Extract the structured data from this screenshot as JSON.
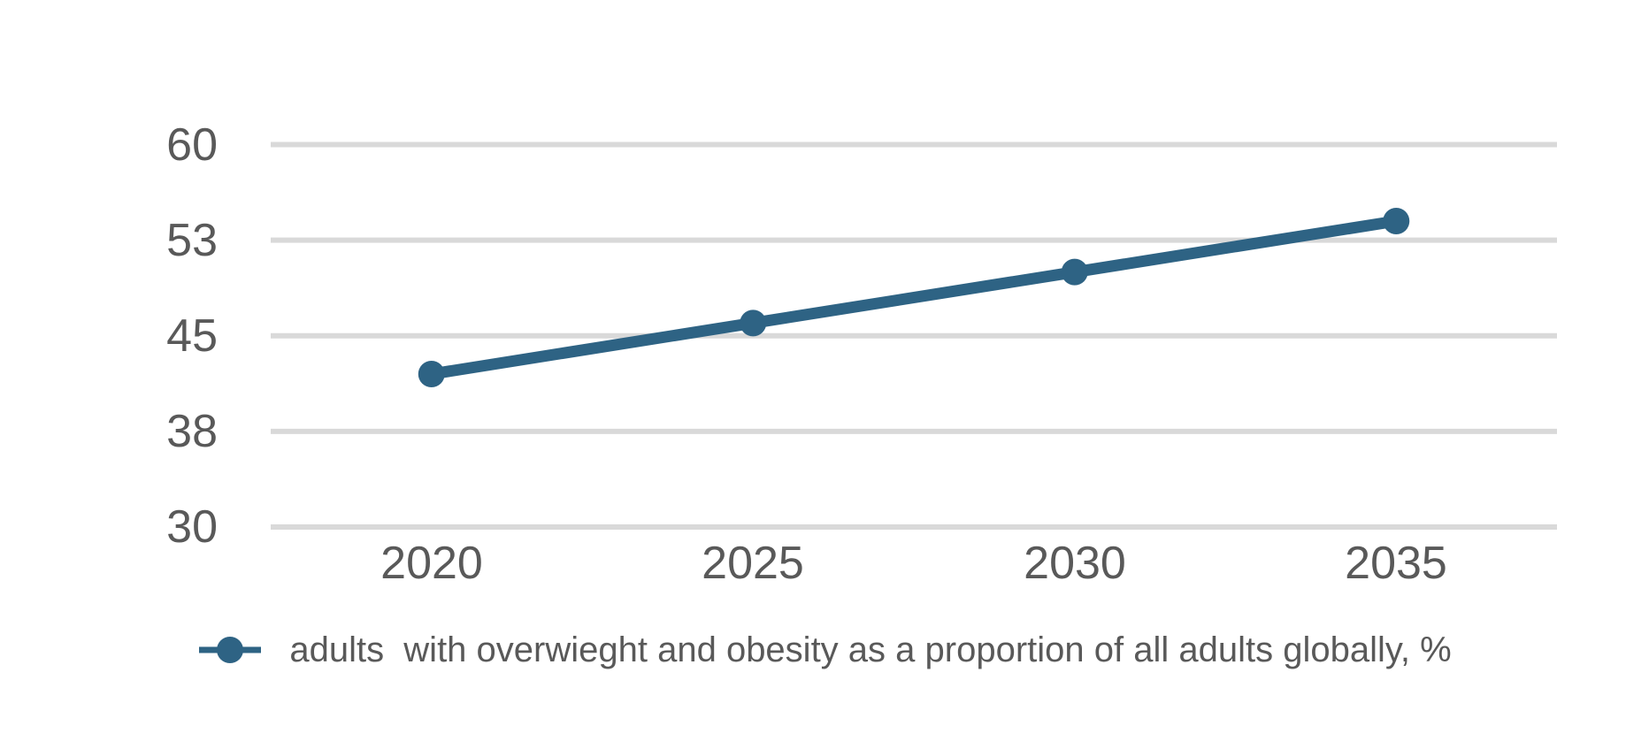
{
  "chart_data": {
    "type": "line",
    "title": "",
    "xlabel": "",
    "ylabel": "",
    "categories": [
      "2020",
      "2025",
      "2030",
      "2035"
    ],
    "series": [
      {
        "name": "adults  with overwieght and obesity as a proportion of all adults globally, %",
        "values": [
          42,
          46,
          50,
          54
        ]
      }
    ],
    "ylim": [
      30,
      60
    ],
    "y_ticks": [
      {
        "value": 60,
        "label": "60"
      },
      {
        "value": 52.5,
        "label": "53"
      },
      {
        "value": 45,
        "label": "45"
      },
      {
        "value": 37.5,
        "label": "38"
      },
      {
        "value": 30,
        "label": "30"
      }
    ],
    "grid": "horizontal",
    "legend_position": "bottom",
    "marker": "circle",
    "colors": {
      "line": "#2e6384",
      "gridline": "#d9d9d9",
      "text": "#595959",
      "background": "#ffffff"
    }
  }
}
